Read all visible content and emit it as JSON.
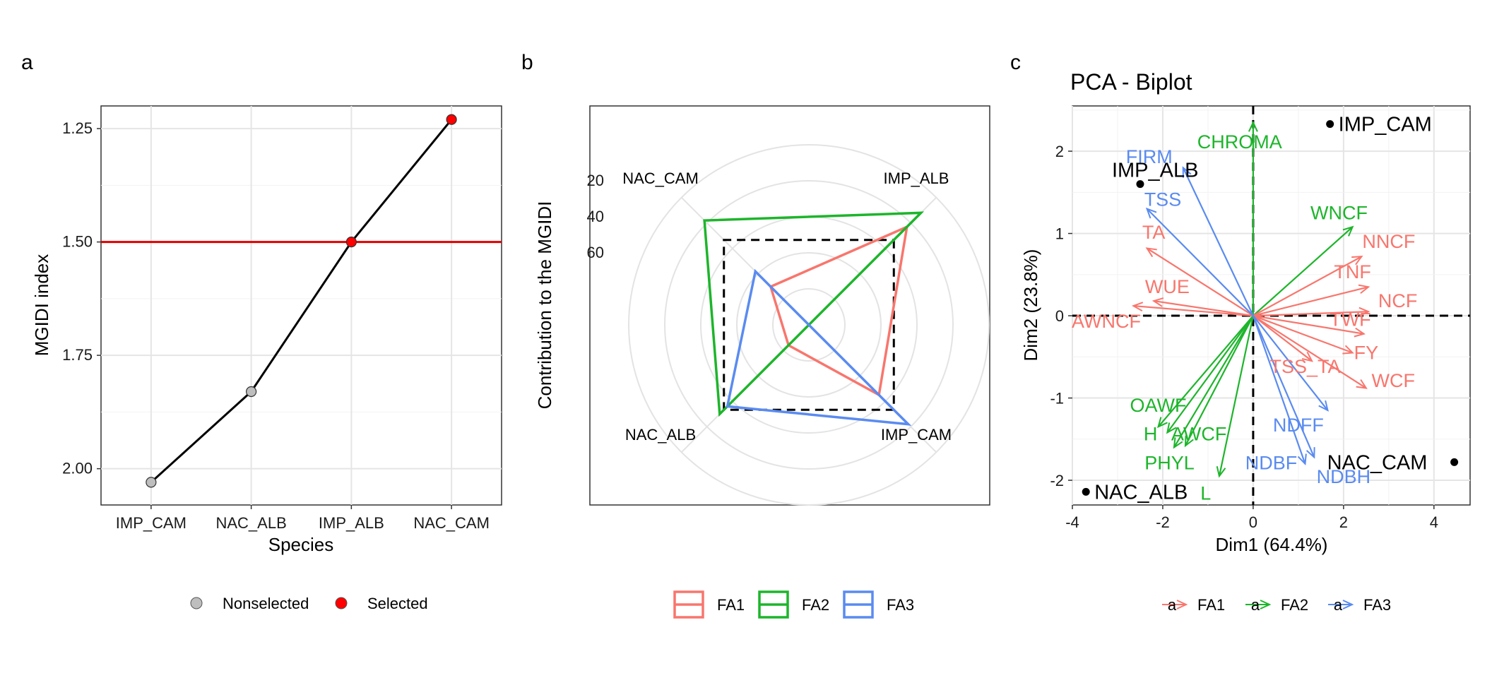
{
  "colors": {
    "FA1": "#F8766D",
    "FA2": "#1DB52B",
    "FA3": "#5A8BF0",
    "selected": "#FF0000",
    "nonselected": "#BEBEBE",
    "cutoff": "#E00000"
  },
  "chart_data": [
    {
      "panel": "a",
      "type": "line",
      "xlabel": "Species",
      "ylabel": "MGIDI index",
      "categories": [
        "IMP_CAM",
        "NAC_ALB",
        "IMP_ALB",
        "NAC_CAM"
      ],
      "values": [
        2.03,
        1.83,
        1.5,
        1.23
      ],
      "status": [
        "Nonselected",
        "Nonselected",
        "Selected",
        "Selected"
      ],
      "cutoff": 1.5,
      "y_reversed": true,
      "ylim": [
        2.08,
        1.2
      ],
      "yticks": [
        "1.25",
        "1.50",
        "1.75",
        "2.00"
      ],
      "ytick_values": [
        1.25,
        1.5,
        1.75,
        2.0
      ],
      "legend": [
        "Nonselected",
        "Selected"
      ],
      "legend_position": "bottom"
    },
    {
      "panel": "b",
      "type": "radar",
      "ylabel": "Contribution to the MGIDI",
      "categories": [
        "IMP_ALB",
        "IMP_CAM",
        "NAC_ALB",
        "NAC_CAM"
      ],
      "r_ticks": [
        "20",
        "40",
        "60"
      ],
      "r_tick_values": [
        20,
        40,
        60
      ],
      "r_range": [
        100,
        0
      ],
      "equal_contribution": 33.3,
      "series": [
        {
          "name": "FA1",
          "values": [
            23,
            45,
            84,
            70
          ]
        },
        {
          "name": "FA2",
          "values": [
            12,
            100,
            30,
            18
          ]
        },
        {
          "name": "FA3",
          "values": [
            100,
            22,
            36,
            58
          ]
        }
      ],
      "legend_position": "bottom"
    },
    {
      "panel": "c",
      "type": "scatter",
      "title": "PCA - Biplot",
      "xlabel": "Dim1 (64.4%)",
      "ylabel": "Dim2 (23.8%)",
      "xlim": [
        -4.0,
        4.8
      ],
      "ylim": [
        -2.3,
        2.55
      ],
      "xticks": [
        "-4",
        "-2",
        "0",
        "2",
        "4"
      ],
      "xtick_values": [
        -4,
        -2,
        0,
        2,
        4
      ],
      "yticks": [
        "-2",
        "-1",
        "0",
        "1",
        "2"
      ],
      "ytick_values": [
        -2,
        -1,
        0,
        1,
        2
      ],
      "observations": [
        {
          "label": "IMP_CAM",
          "x": 1.7,
          "y": 2.33
        },
        {
          "label": "IMP_ALB",
          "x": -2.5,
          "y": 1.6
        },
        {
          "label": "NAC_CAM",
          "x": 4.45,
          "y": -1.78
        },
        {
          "label": "NAC_ALB",
          "x": -3.7,
          "y": -2.14
        }
      ],
      "variables": [
        {
          "label": "CHROMA",
          "factor": "FA2",
          "x": 0.0,
          "y": 2.35,
          "lx": -0.3,
          "ly": 2.12
        },
        {
          "label": "WNCF",
          "factor": "FA2",
          "x": 2.2,
          "y": 1.08,
          "lx": 1.9,
          "ly": 1.26
        },
        {
          "label": "OAWF",
          "factor": "FA2",
          "x": -2.1,
          "y": -1.35,
          "lx": -2.1,
          "ly": -1.08
        },
        {
          "label": "H",
          "factor": "FA2",
          "x": -1.9,
          "y": -1.42,
          "lx": -2.27,
          "ly": -1.43
        },
        {
          "label": "AWCF",
          "factor": "FA2",
          "x": -1.75,
          "y": -1.6,
          "lx": -1.2,
          "ly": -1.43
        },
        {
          "label": "PHYL",
          "factor": "FA2",
          "x": -1.5,
          "y": -1.58,
          "lx": -1.85,
          "ly": -1.78
        },
        {
          "label": "L",
          "factor": "FA2",
          "x": -0.75,
          "y": -1.95,
          "lx": -1.05,
          "ly": -2.15
        },
        {
          "label": "NNCF",
          "factor": "FA1",
          "x": 2.4,
          "y": 0.72,
          "lx": 3.0,
          "ly": 0.91
        },
        {
          "label": "TNF",
          "factor": "FA1",
          "x": 2.55,
          "y": 0.35,
          "lx": 2.2,
          "ly": 0.54
        },
        {
          "label": "NCF",
          "factor": "FA1",
          "x": 2.55,
          "y": 0.05,
          "lx": 3.2,
          "ly": 0.19
        },
        {
          "label": "TWF",
          "factor": "FA1",
          "x": 2.45,
          "y": -0.22,
          "lx": 2.15,
          "ly": -0.04
        },
        {
          "label": "FY",
          "factor": "FA1",
          "x": 2.2,
          "y": -0.45,
          "lx": 2.5,
          "ly": -0.44
        },
        {
          "label": "WCF",
          "factor": "FA1",
          "x": 2.5,
          "y": -0.88,
          "lx": 3.1,
          "ly": -0.78
        },
        {
          "label": "TA",
          "factor": "FA1",
          "x": -2.35,
          "y": 0.82,
          "lx": -2.2,
          "ly": 1.02
        },
        {
          "label": "WUE",
          "factor": "FA1",
          "x": -2.2,
          "y": 0.18,
          "lx": -1.9,
          "ly": 0.36
        },
        {
          "label": "AWNCF",
          "factor": "FA1",
          "x": -2.65,
          "y": 0.12,
          "lx": -3.25,
          "ly": -0.06
        },
        {
          "label": "TSS_TA",
          "factor": "FA1",
          "x": 1.3,
          "y": -0.55,
          "lx": 1.15,
          "ly": -0.61
        },
        {
          "label": "FIRM",
          "factor": "FA3",
          "x": -1.55,
          "y": 1.8,
          "lx": -2.3,
          "ly": 1.94
        },
        {
          "label": "TSS",
          "factor": "FA3",
          "x": -2.35,
          "y": 1.3,
          "lx": -2.0,
          "ly": 1.42
        },
        {
          "label": "NDFF",
          "factor": "FA3",
          "x": 1.65,
          "y": -1.15,
          "lx": 1.0,
          "ly": -1.32
        },
        {
          "label": "NDBF",
          "factor": "FA3",
          "x": 1.35,
          "y": -1.72,
          "lx": 0.4,
          "ly": -1.78
        },
        {
          "label": "NDBH",
          "factor": "FA3",
          "x": 1.15,
          "y": -1.8,
          "lx": 2.0,
          "ly": -1.95
        }
      ],
      "legend": [
        "FA1",
        "FA2",
        "FA3"
      ],
      "legend_glyph": "a",
      "legend_position": "bottom"
    }
  ],
  "panels": {
    "a": "a",
    "b": "b",
    "c": "c"
  }
}
